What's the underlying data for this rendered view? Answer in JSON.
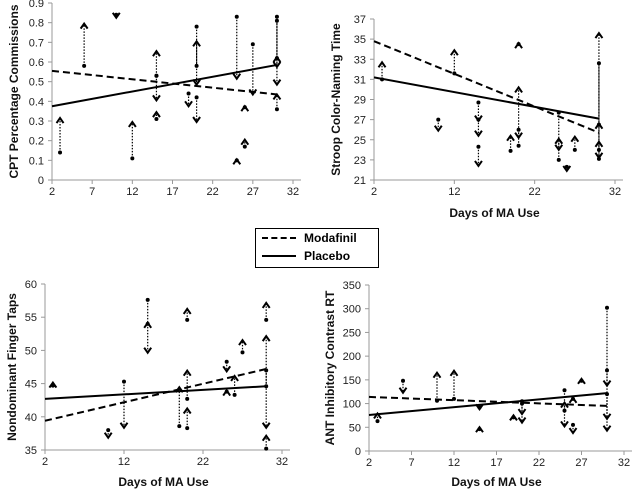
{
  "legend": {
    "modafinil": "Modafinil",
    "placebo": "Placebo"
  },
  "chart_data": [
    {
      "type": "scatter",
      "title": "",
      "xlabel": "",
      "ylabel": "CPT Percentage Commissions",
      "xlim": [
        2,
        32
      ],
      "xticks": [
        "2",
        "7",
        "12",
        "17",
        "22",
        "27",
        "32"
      ],
      "xtickvals": [
        2,
        7,
        12,
        17,
        22,
        27,
        32
      ],
      "ylim": [
        0,
        0.9
      ],
      "yticks": [
        "0",
        "0.1",
        "0.2",
        "0.3",
        "0.4",
        "0.5",
        "0.6",
        "0.7",
        "0.8",
        "0.9"
      ],
      "ytickvals": [
        0,
        0.1,
        0.2,
        0.3,
        0.4,
        0.5,
        0.6,
        0.7,
        0.8,
        0.9
      ],
      "trend": {
        "Modafinil": [
          [
            2,
            0.555
          ],
          [
            30,
            0.435
          ]
        ],
        "Placebo": [
          [
            2,
            0.375
          ],
          [
            30,
            0.585
          ]
        ]
      },
      "changes": [
        [
          3,
          0.14,
          0.31
        ],
        [
          6,
          0.58,
          0.79
        ],
        [
          10,
          0.84,
          0.83
        ],
        [
          12,
          0.11,
          0.29
        ],
        [
          15,
          0.53,
          0.65
        ],
        [
          15,
          0.53,
          0.41
        ],
        [
          15,
          0.31,
          0.34
        ],
        [
          19,
          0.44,
          0.38
        ],
        [
          20,
          0.58,
          0.7
        ],
        [
          20,
          0.78,
          0.49
        ],
        [
          20,
          0.42,
          0.3
        ],
        [
          25,
          0.83,
          0.52
        ],
        [
          25,
          0.1,
          0.1
        ],
        [
          26,
          0.37,
          0.37
        ],
        [
          26,
          0.17,
          0.2
        ],
        [
          27,
          0.69,
          0.44
        ],
        [
          30,
          0.83,
          0.49
        ],
        [
          30,
          0.81,
          0.58
        ],
        [
          30,
          0.36,
          0.43
        ],
        [
          30,
          0.62,
          0.62
        ]
      ]
    },
    {
      "type": "scatter",
      "title": "",
      "xlabel": "Days of MA Use",
      "ylabel": "Stroop Color-Naming Time",
      "xlim": [
        2,
        32
      ],
      "xticks": [
        "2",
        "12",
        "22",
        "32"
      ],
      "xtickvals": [
        2,
        12,
        22,
        32
      ],
      "ylim": [
        21,
        37
      ],
      "yticks": [
        "21",
        "23",
        "25",
        "27",
        "29",
        "31",
        "33",
        "35",
        "37"
      ],
      "ytickvals": [
        21,
        23,
        25,
        27,
        29,
        31,
        33,
        35,
        37
      ],
      "trend": {
        "Modafinil": [
          [
            2,
            34.8
          ],
          [
            30,
            25.7
          ]
        ],
        "Placebo": [
          [
            2,
            31.2
          ],
          [
            30,
            27.1
          ]
        ]
      },
      "changes": [
        [
          3,
          31,
          32.6
        ],
        [
          10,
          27,
          26
        ],
        [
          12,
          31.6,
          33.8
        ],
        [
          15,
          28.7,
          27
        ],
        [
          15,
          27,
          25.5
        ],
        [
          15,
          24.3,
          22.5
        ],
        [
          19,
          23.9,
          25.3
        ],
        [
          20,
          34.5,
          34.5
        ],
        [
          20,
          24.4,
          30.1
        ],
        [
          20,
          26,
          25.3
        ],
        [
          25,
          27.7,
          24.1
        ],
        [
          25,
          23,
          25
        ],
        [
          26,
          22.3,
          22
        ],
        [
          27,
          24,
          25.2
        ],
        [
          30,
          23.1,
          35.5
        ],
        [
          30,
          32.6,
          23.3
        ],
        [
          30,
          26.5,
          26.5
        ],
        [
          30,
          24,
          24.7
        ]
      ]
    },
    {
      "type": "scatter",
      "title": "",
      "xlabel": "Days of MA Use",
      "ylabel": "Nondominant Finger Taps",
      "xlim": [
        2,
        32
      ],
      "xticks": [
        "2",
        "12",
        "22",
        "32"
      ],
      "xtickvals": [
        2,
        12,
        22,
        32
      ],
      "ylim": [
        35,
        60
      ],
      "yticks": [
        "35",
        "40",
        "45",
        "50",
        "55",
        "60"
      ],
      "ytickvals": [
        35,
        40,
        45,
        50,
        55,
        60
      ],
      "trend": {
        "Modafinil": [
          [
            2,
            39.4
          ],
          [
            30,
            47.2
          ]
        ],
        "Placebo": [
          [
            2,
            42.7
          ],
          [
            30,
            44.6
          ]
        ]
      },
      "changes": [
        [
          3,
          44.7,
          45
        ],
        [
          10,
          38,
          37
        ],
        [
          12,
          45.3,
          38.5
        ],
        [
          15,
          57.6,
          49.8
        ],
        [
          15,
          54,
          54
        ],
        [
          19,
          38.6,
          44.3
        ],
        [
          20,
          54.6,
          56.1
        ],
        [
          20,
          42.7,
          46.8
        ],
        [
          20,
          38.3,
          41.1
        ],
        [
          25,
          48.3,
          47
        ],
        [
          25,
          43.8,
          43.8
        ],
        [
          26,
          43.3,
          46
        ],
        [
          27,
          49.7,
          51.4
        ],
        [
          30,
          54.6,
          57
        ],
        [
          30,
          44.6,
          52
        ],
        [
          30,
          47,
          38.5
        ],
        [
          30,
          35.2,
          37
        ]
      ]
    },
    {
      "type": "scatter",
      "title": "",
      "xlabel": "Days of MA Use",
      "ylabel": "ANT Inhibitory Contrast RT",
      "xlim": [
        2,
        32
      ],
      "xticks": [
        "2",
        "7",
        "12",
        "17",
        "22",
        "27",
        "32"
      ],
      "xtickvals": [
        2,
        7,
        12,
        17,
        22,
        27,
        32
      ],
      "ylim": [
        0,
        350
      ],
      "yticks": [
        "0",
        "50",
        "100",
        "150",
        "200",
        "250",
        "300",
        "350"
      ],
      "ytickvals": [
        0,
        50,
        100,
        150,
        200,
        250,
        300,
        350
      ],
      "trend": {
        "Modafinil": [
          [
            2,
            114
          ],
          [
            30,
            95
          ]
        ],
        "Placebo": [
          [
            2,
            76
          ],
          [
            30,
            122
          ]
        ]
      },
      "changes": [
        [
          3,
          63,
          77
        ],
        [
          6,
          148,
          125
        ],
        [
          10,
          106,
          163
        ],
        [
          12,
          110,
          167
        ],
        [
          15,
          92,
          90
        ],
        [
          15,
          46,
          48
        ],
        [
          19,
          71,
          73
        ],
        [
          20,
          105,
          62
        ],
        [
          20,
          100,
          80
        ],
        [
          25,
          128,
          54
        ],
        [
          25,
          85,
          100
        ],
        [
          26,
          55,
          40
        ],
        [
          26,
          110,
          110
        ],
        [
          27,
          148,
          150
        ],
        [
          30,
          302,
          140
        ],
        [
          30,
          170,
          45
        ],
        [
          30,
          120,
          70
        ]
      ]
    }
  ]
}
